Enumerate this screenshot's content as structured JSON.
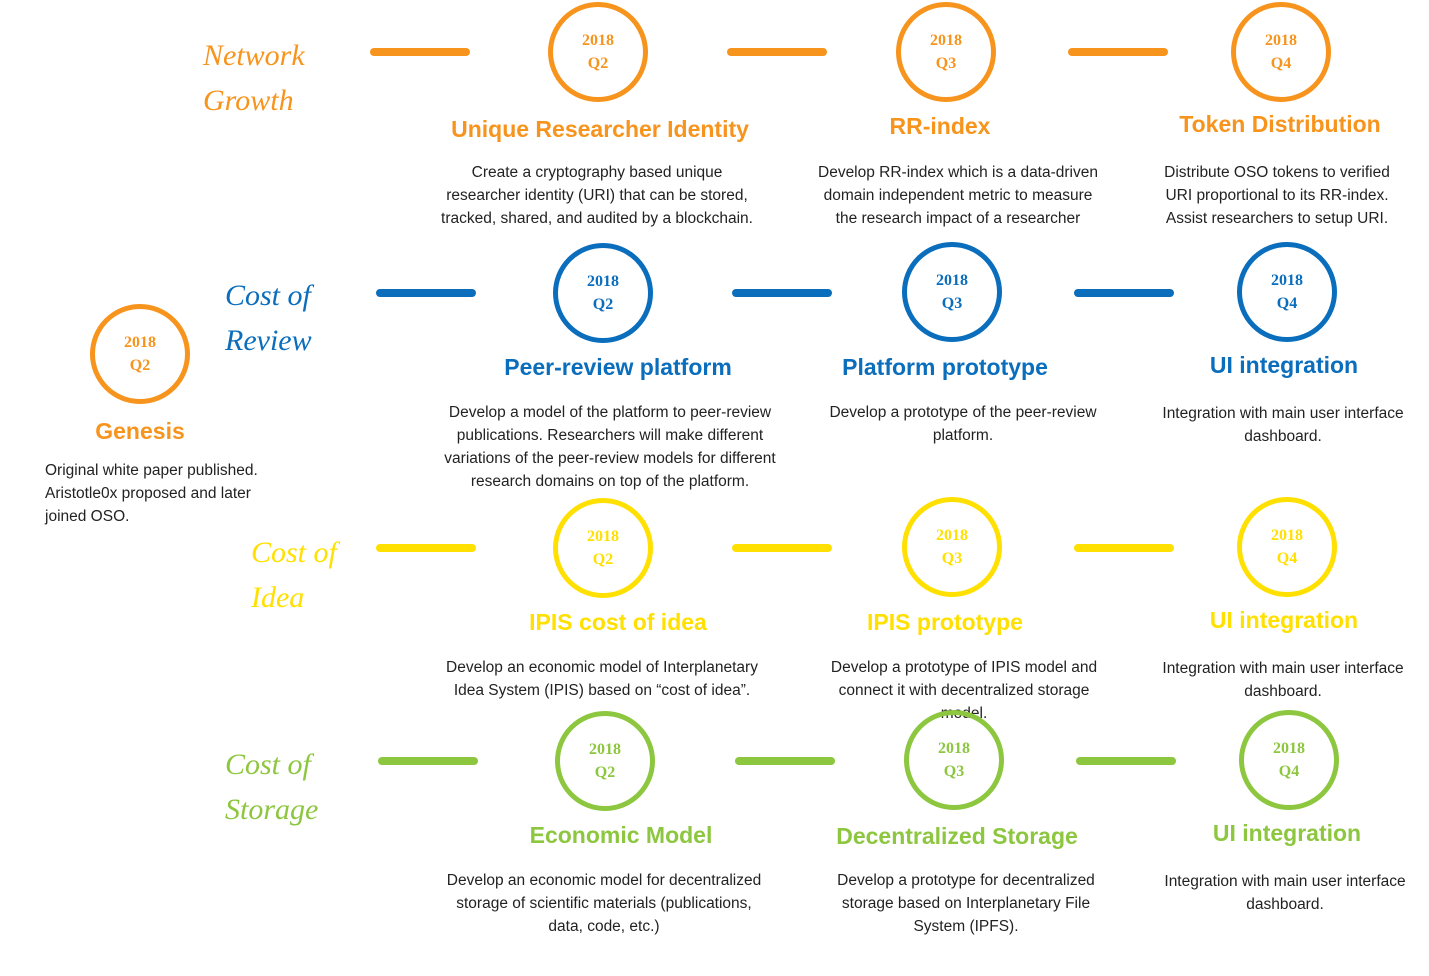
{
  "genesis": {
    "year": "2018",
    "quarter": "Q2",
    "title": "Genesis",
    "desc": [
      "Original white paper published.",
      "Aristotle0x proposed and later",
      "joined OSO."
    ]
  },
  "rows": {
    "network": {
      "label": [
        "Network",
        "Growth"
      ],
      "color": "#F7941D",
      "milestones": [
        {
          "year": "2018",
          "quarter": "Q2",
          "title": "Unique Researcher Identity",
          "desc": [
            "Create a cryptography based unique",
            "researcher identity (URI) that can be stored,",
            "tracked, shared, and audited by a blockchain."
          ]
        },
        {
          "year": "2018",
          "quarter": "Q3",
          "title": "RR-index",
          "desc": [
            "Develop RR-index which is a data-driven",
            "domain independent metric to measure",
            "the research impact of a researcher"
          ]
        },
        {
          "year": "2018",
          "quarter": "Q4",
          "title": "Token Distribution",
          "desc": [
            "Distribute OSO tokens to verified",
            "URI proportional to its RR-index.",
            "Assist researchers to setup URI."
          ]
        }
      ]
    },
    "review": {
      "label": [
        "Cost of",
        "Review"
      ],
      "color": "#0A6EBD",
      "milestones": [
        {
          "year": "2018",
          "quarter": "Q2",
          "title": "Peer-review platform",
          "desc": [
            "Develop a model of the platform to peer-review",
            "publications. Researchers will make different",
            "variations of the peer-review models for different",
            "research domains on top of the platform."
          ]
        },
        {
          "year": "2018",
          "quarter": "Q3",
          "title": "Platform prototype",
          "desc": [
            "Develop a prototype of the peer-review",
            "platform."
          ]
        },
        {
          "year": "2018",
          "quarter": "Q4",
          "title": "UI integration",
          "desc": [
            "Integration with main user interface",
            "dashboard."
          ]
        }
      ]
    },
    "idea": {
      "label": [
        "Cost of",
        "Idea"
      ],
      "color": "#FFE000",
      "milestones": [
        {
          "year": "2018",
          "quarter": "Q2",
          "title": "IPIS cost of idea",
          "desc": [
            "Develop an economic model of Interplanetary",
            "Idea System (IPIS) based on “cost of idea”."
          ]
        },
        {
          "year": "2018",
          "quarter": "Q3",
          "title": "IPIS prototype",
          "desc": [
            "Develop a prototype of IPIS model and",
            "connect it with decentralized storage",
            "model."
          ]
        },
        {
          "year": "2018",
          "quarter": "Q4",
          "title": "UI integration",
          "desc": [
            "Integration with main user interface",
            "dashboard."
          ]
        }
      ]
    },
    "storage": {
      "label": [
        "Cost of",
        "Storage"
      ],
      "color": "#8DC63F",
      "milestones": [
        {
          "year": "2018",
          "quarter": "Q2",
          "title": "Economic Model",
          "desc": [
            "Develop an economic model for decentralized",
            "storage of scientific materials (publications,",
            "data, code, etc.)"
          ]
        },
        {
          "year": "2018",
          "quarter": "Q3",
          "title": "Decentralized Storage",
          "desc": [
            "Develop a prototype for decentralized",
            "storage based on Interplanetary File",
            "System (IPFS)."
          ]
        },
        {
          "year": "2018",
          "quarter": "Q4",
          "title": "UI integration",
          "desc": [
            "Integration with main user interface",
            "dashboard."
          ]
        }
      ]
    }
  }
}
